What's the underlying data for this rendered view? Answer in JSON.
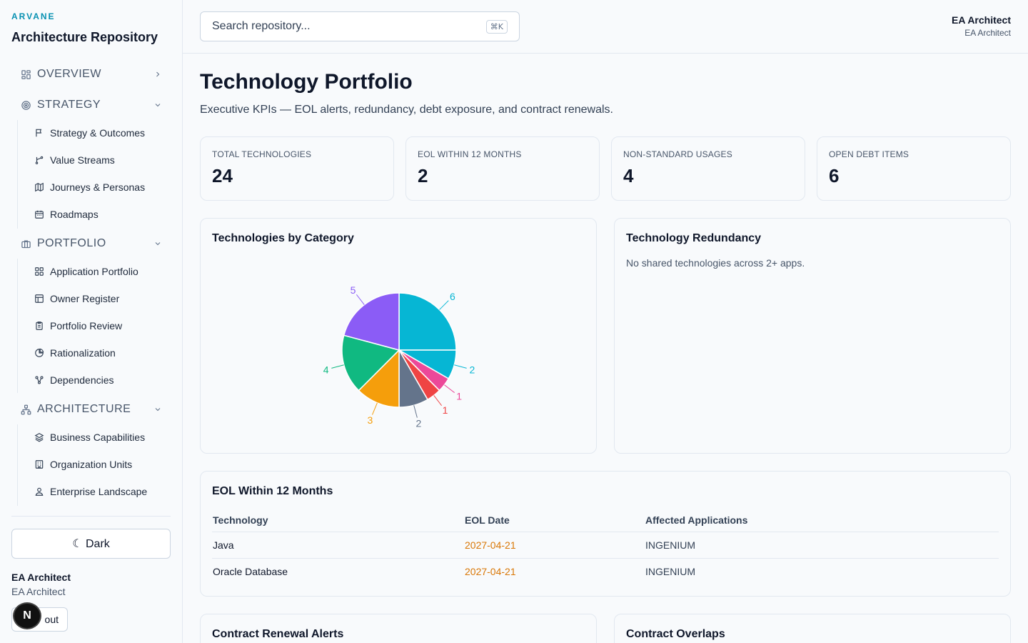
{
  "sidebar": {
    "brand": "ARVANE",
    "title": "Architecture Repository",
    "sections": [
      {
        "label": "OVERVIEW",
        "icon": "grid-icon",
        "expanded": false,
        "items": []
      },
      {
        "label": "STRATEGY",
        "icon": "target-icon",
        "expanded": true,
        "items": [
          {
            "label": "Strategy & Outcomes",
            "icon": "flag-icon"
          },
          {
            "label": "Value Streams",
            "icon": "git-branch-icon"
          },
          {
            "label": "Journeys & Personas",
            "icon": "map-icon"
          },
          {
            "label": "Roadmaps",
            "icon": "calendar-icon"
          }
        ]
      },
      {
        "label": "PORTFOLIO",
        "icon": "briefcase-icon",
        "expanded": true,
        "items": [
          {
            "label": "Application Portfolio",
            "icon": "grid-icon"
          },
          {
            "label": "Owner Register",
            "icon": "table-icon"
          },
          {
            "label": "Portfolio Review",
            "icon": "clipboard-icon"
          },
          {
            "label": "Rationalization",
            "icon": "pie-chart-icon"
          },
          {
            "label": "Dependencies",
            "icon": "network-icon"
          }
        ]
      },
      {
        "label": "ARCHITECTURE",
        "icon": "hierarchy-icon",
        "expanded": true,
        "items": [
          {
            "label": "Business Capabilities",
            "icon": "layers-icon"
          },
          {
            "label": "Organization Units",
            "icon": "building-icon"
          },
          {
            "label": "Enterprise Landscape",
            "icon": "user-icon"
          }
        ]
      }
    ],
    "dark_label": "☾ Dark",
    "user_name": "EA Architect",
    "user_role": "EA Architect",
    "logout_label": "out",
    "badge_letter": "N"
  },
  "header": {
    "search_placeholder": "Search repository...",
    "shortcut": "⌘K",
    "user_name": "EA Architect",
    "user_role": "EA Architect"
  },
  "main": {
    "title": "Technology Portfolio",
    "subtitle": "Executive KPIs — EOL alerts, redundancy, debt exposure, and contract renewals.",
    "kpis": [
      {
        "label": "TOTAL TECHNOLOGIES",
        "value": "24"
      },
      {
        "label": "EOL WITHIN 12 MONTHS",
        "value": "2"
      },
      {
        "label": "NON-STANDARD USAGES",
        "value": "4"
      },
      {
        "label": "OPEN DEBT ITEMS",
        "value": "6"
      }
    ],
    "category_card_title": "Technologies by Category",
    "redundancy_card_title": "Technology Redundancy",
    "redundancy_empty": "No shared technologies across 2+ apps.",
    "eol_card_title": "EOL Within 12 Months",
    "eol_columns": [
      "Technology",
      "EOL Date",
      "Affected Applications"
    ],
    "eol_rows": [
      {
        "technology": "Java",
        "date": "2027-04-21",
        "apps": "INGENIUM"
      },
      {
        "technology": "Oracle Database",
        "date": "2027-04-21",
        "apps": "INGENIUM"
      }
    ],
    "contract_card_title": "Contract Renewal Alerts",
    "overlap_card_title": "Contract Overlaps"
  },
  "chart_data": {
    "type": "pie",
    "values": [
      6,
      2,
      1,
      1,
      2,
      3,
      4,
      5
    ],
    "colors": [
      "#06b6d4",
      "#06b6d4",
      "#ec4899",
      "#ef4444",
      "#64748b",
      "#f59e0b",
      "#10b981",
      "#8b5cf6"
    ],
    "labels": [
      "6",
      "2",
      "1",
      "1",
      "2",
      "3",
      "4",
      "5"
    ],
    "title": "Technologies by Category"
  }
}
